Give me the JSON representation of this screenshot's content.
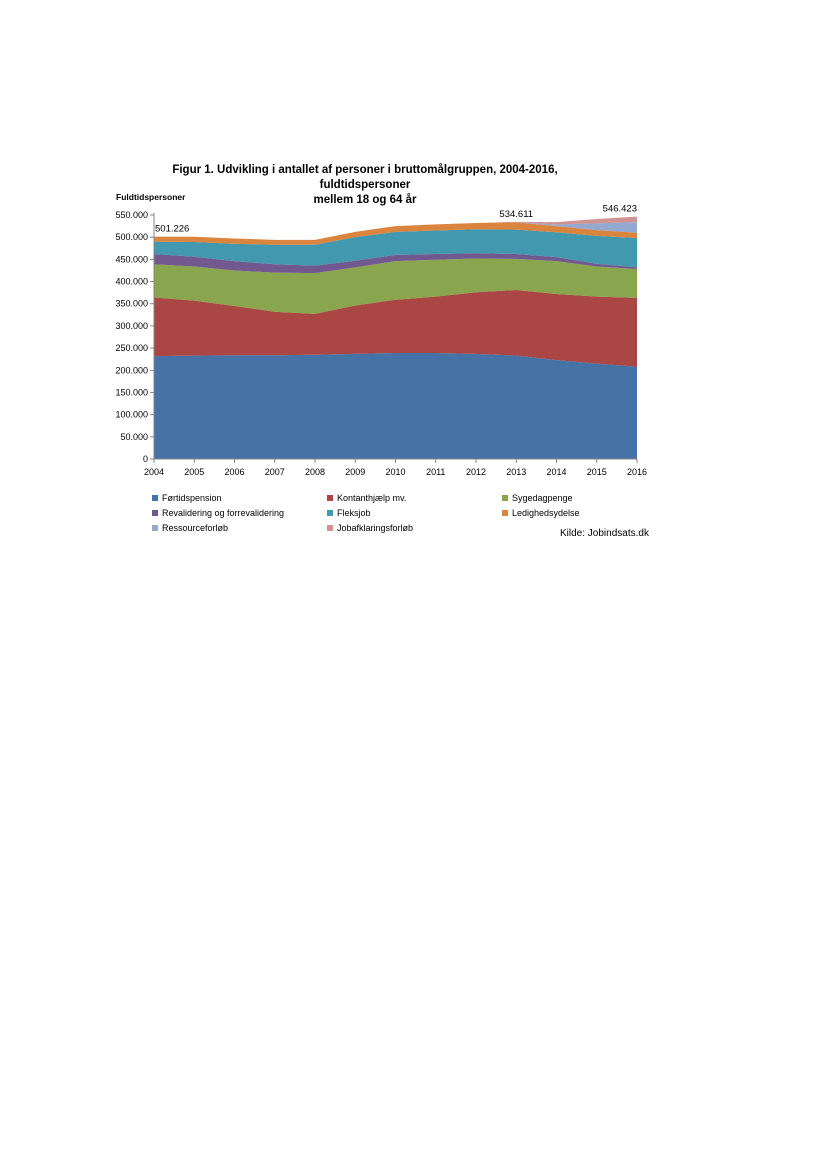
{
  "chart_data": {
    "type": "area",
    "stacked": true,
    "title_line1": "Figur 1. Udvikling i antallet af personer i bruttomålgruppen, 2004-2016, fuldtidspersoner",
    "title_line2": "mellem 18 og 64 år",
    "ylabel": "Fuldtidspersoner",
    "xlabel": "",
    "x": [
      "2004",
      "2005",
      "2006",
      "2007",
      "2008",
      "2009",
      "2010",
      "2011",
      "2012",
      "2013",
      "2014",
      "2015",
      "2016"
    ],
    "ylim": [
      0,
      550000
    ],
    "yticks": [
      0,
      50000,
      100000,
      150000,
      200000,
      250000,
      300000,
      350000,
      400000,
      450000,
      500000,
      550000
    ],
    "ytick_labels": [
      "0",
      "50.000",
      "100.000",
      "150.000",
      "200.000",
      "250.000",
      "300.000",
      "350.000",
      "400.000",
      "450.000",
      "500.000",
      "550.000"
    ],
    "grid": false,
    "legend_position": "bottom",
    "series": [
      {
        "name": "Førtidspension",
        "color": "#4572a7",
        "values": [
          232000,
          233000,
          234000,
          234000,
          235000,
          237000,
          239000,
          239000,
          237000,
          233000,
          223000,
          215000,
          208000
        ]
      },
      {
        "name": "Kontanthjælp mv.",
        "color": "#aa4643",
        "values": [
          132000,
          124000,
          111000,
          98000,
          92000,
          109000,
          120000,
          127000,
          139000,
          148000,
          149000,
          151000,
          155000
        ]
      },
      {
        "name": "Sygedagpenge",
        "color": "#89a54e",
        "values": [
          75000,
          77000,
          80000,
          88000,
          92000,
          86000,
          87000,
          83000,
          76000,
          70000,
          74000,
          68000,
          65000
        ]
      },
      {
        "name": "Revalidering og forrevalidering",
        "color": "#71588f",
        "values": [
          23000,
          22000,
          21000,
          19000,
          17000,
          15000,
          14000,
          13000,
          12000,
          11000,
          9000,
          6000,
          4000
        ]
      },
      {
        "name": "Fleksjob",
        "color": "#4198af",
        "values": [
          28000,
          33000,
          39000,
          44000,
          47000,
          53000,
          52000,
          53000,
          54000,
          55000,
          56000,
          63000,
          66000
        ]
      },
      {
        "name": "Ledighedsydelse",
        "color": "#db843d",
        "values": [
          11226,
          12000,
          12000,
          11000,
          11000,
          12000,
          13000,
          14000,
          14000,
          16611,
          14000,
          13000,
          12000
        ]
      },
      {
        "name": "Ressourceforløb",
        "color": "#93a9cf",
        "values": [
          0,
          0,
          0,
          0,
          0,
          0,
          0,
          0,
          0,
          0,
          4000,
          15000,
          24000
        ]
      },
      {
        "name": "Jobafklaringsforløb",
        "color": "#d19392",
        "values": [
          0,
          0,
          0,
          0,
          0,
          0,
          0,
          0,
          0,
          1000,
          5000,
          10000,
          12423
        ]
      }
    ],
    "annotations": [
      {
        "x": "2004",
        "label": "501.226"
      },
      {
        "x": "2013",
        "label": "534.611"
      },
      {
        "x": "2016",
        "label": "546.423"
      }
    ],
    "source": "Kilde: Jobindsats.dk"
  }
}
